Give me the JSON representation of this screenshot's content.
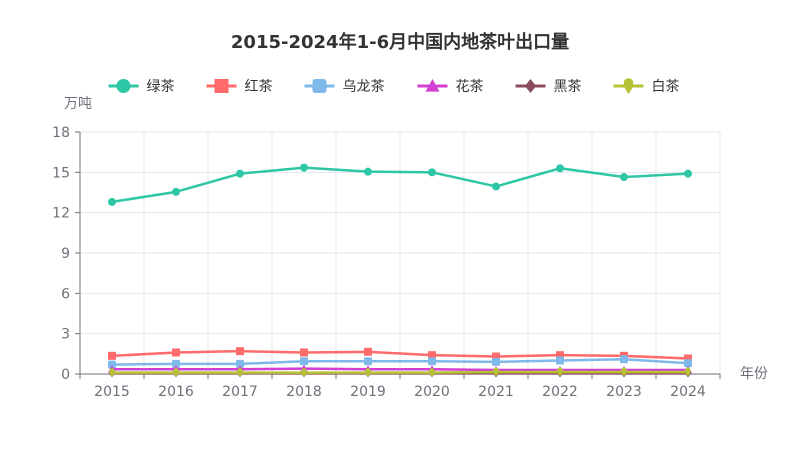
{
  "chart_data": {
    "type": "line",
    "title": "2015-2024年1-6月中国内地茶叶出口量",
    "xlabel": "年份",
    "ylabel": "万吨",
    "categories": [
      "2015",
      "2016",
      "2017",
      "2018",
      "2019",
      "2020",
      "2021",
      "2022",
      "2023",
      "2024"
    ],
    "ylim": [
      0,
      18
    ],
    "yticks": [
      0,
      3,
      6,
      9,
      12,
      15,
      18
    ],
    "grid": true,
    "legend_position": "top-center",
    "series": [
      {
        "name": "绿茶",
        "color": "#2ec7a6",
        "marker": "circle",
        "values": [
          12.8,
          13.55,
          14.9,
          15.35,
          15.05,
          15.0,
          13.95,
          15.3,
          14.65,
          14.9
        ]
      },
      {
        "name": "红茶",
        "color": "#ff6b6b",
        "marker": "rect",
        "values": [
          1.35,
          1.6,
          1.7,
          1.6,
          1.65,
          1.4,
          1.3,
          1.4,
          1.35,
          1.15
        ]
      },
      {
        "name": "乌龙茶",
        "color": "#7fb8ea",
        "marker": "roundRect",
        "values": [
          0.7,
          0.75,
          0.75,
          0.95,
          0.95,
          0.95,
          0.9,
          1.0,
          1.1,
          0.8
        ]
      },
      {
        "name": "花茶",
        "color": "#d23fd2",
        "marker": "triangle",
        "values": [
          0.35,
          0.35,
          0.35,
          0.4,
          0.35,
          0.35,
          0.3,
          0.3,
          0.3,
          0.3
        ]
      },
      {
        "name": "黑茶",
        "color": "#8b4d5b",
        "marker": "diamond",
        "values": [
          0.05,
          0.05,
          0.05,
          0.05,
          0.05,
          0.05,
          0.05,
          0.05,
          0.05,
          0.05
        ]
      },
      {
        "name": "白茶",
        "color": "#b5c334",
        "marker": "pin",
        "values": [
          0.1,
          0.1,
          0.1,
          0.1,
          0.1,
          0.1,
          0.15,
          0.15,
          0.15,
          0.15
        ]
      }
    ]
  }
}
